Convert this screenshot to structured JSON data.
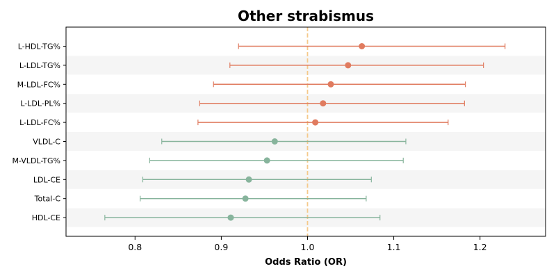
{
  "chart_data": {
    "type": "forest",
    "title": "Other strabismus",
    "xlabel": "Odds Ratio (OR)",
    "ylabel": "",
    "xlim": [
      0.72,
      1.276
    ],
    "xticks": [
      0.8,
      0.9,
      1.0,
      1.1,
      1.2
    ],
    "xtick_labels": [
      "0.8",
      "0.9",
      "1.0",
      "1.1",
      "1.2"
    ],
    "reference_line": 1.0,
    "grid": false,
    "colors": {
      "positive": "#E07B5F",
      "negative": "#87B49C",
      "reference": "#F5C98A",
      "band": "#F5F5F5",
      "axis": "#000000"
    },
    "categories": [
      "L-HDL-TG%",
      "L-LDL-TG%",
      "M-LDL-FC%",
      "L-LDL-PL%",
      "L-LDL-FC%",
      "VLDL-C",
      "M-VLDL-TG%",
      "LDL-CE",
      "Total-C",
      "HDL-CE"
    ],
    "estimates": [
      {
        "label": "L-HDL-TG%",
        "or": 1.063,
        "lower": 0.92,
        "upper": 1.229,
        "direction": "positive"
      },
      {
        "label": "L-LDL-TG%",
        "or": 1.047,
        "lower": 0.91,
        "upper": 1.204,
        "direction": "positive"
      },
      {
        "label": "M-LDL-FC%",
        "or": 1.027,
        "lower": 0.891,
        "upper": 1.183,
        "direction": "positive"
      },
      {
        "label": "L-LDL-PL%",
        "or": 1.018,
        "lower": 0.875,
        "upper": 1.182,
        "direction": "positive"
      },
      {
        "label": "L-LDL-FC%",
        "or": 1.009,
        "lower": 0.873,
        "upper": 1.163,
        "direction": "positive"
      },
      {
        "label": "VLDL-C",
        "or": 0.962,
        "lower": 0.831,
        "upper": 1.114,
        "direction": "negative"
      },
      {
        "label": "M-VLDL-TG%",
        "or": 0.953,
        "lower": 0.817,
        "upper": 1.111,
        "direction": "negative"
      },
      {
        "label": "LDL-CE",
        "or": 0.932,
        "lower": 0.809,
        "upper": 1.074,
        "direction": "negative"
      },
      {
        "label": "Total-C",
        "or": 0.928,
        "lower": 0.806,
        "upper": 1.068,
        "direction": "negative"
      },
      {
        "label": "HDL-CE",
        "or": 0.911,
        "lower": 0.765,
        "upper": 1.084,
        "direction": "negative"
      }
    ]
  }
}
